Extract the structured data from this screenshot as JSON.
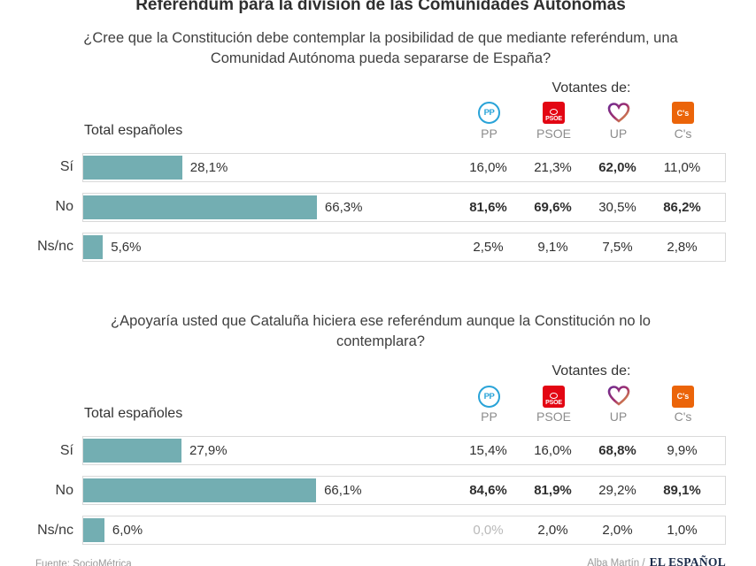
{
  "header": {
    "title": "Referéndum para la división de las Comunidades Autónomas"
  },
  "parties": [
    {
      "label": "PP",
      "short": "PP"
    },
    {
      "label": "PSOE",
      "short": "PSOE"
    },
    {
      "label": "UP",
      "short": "UP"
    },
    {
      "label": "C's",
      "short": "C's"
    }
  ],
  "chart_data": [
    {
      "type": "bar",
      "orientation": "horizontal",
      "question": "¿Cree que la Constitución debe contemplar la posibilidad de que mediante referéndum, una Comunidad Autónoma pueda separarse de España?",
      "votantes_label": "Votantes de:",
      "total_label": "Total españoles",
      "categories": [
        "Sí",
        "No",
        "Ns/nc"
      ],
      "xlim": [
        0,
        100
      ],
      "unit": "%",
      "total": {
        "values": [
          28.1,
          66.3,
          5.6
        ],
        "labels": [
          "28,1%",
          "66,3%",
          "5,6%"
        ]
      },
      "series": [
        {
          "name": "PP",
          "values": [
            16.0,
            81.6,
            2.5
          ],
          "labels": [
            "16,0%",
            "81,6%",
            "2,5%"
          ]
        },
        {
          "name": "PSOE",
          "values": [
            21.3,
            69.6,
            9.1
          ],
          "labels": [
            "21,3%",
            "69,6%",
            "9,1%"
          ]
        },
        {
          "name": "UP",
          "values": [
            62.0,
            30.5,
            7.5
          ],
          "labels": [
            "62,0%",
            "30,5%",
            "7,5%"
          ]
        },
        {
          "name": "C's",
          "values": [
            11.0,
            86.2,
            2.8
          ],
          "labels": [
            "11,0%",
            "86,2%",
            "2,8%"
          ]
        }
      ]
    },
    {
      "type": "bar",
      "orientation": "horizontal",
      "question": "¿Apoyaría usted que Cataluña hiciera ese referéndum aunque la Constitución no lo contemplara?",
      "votantes_label": "Votantes de:",
      "total_label": "Total españoles",
      "categories": [
        "Sí",
        "No",
        "Ns/nc"
      ],
      "xlim": [
        0,
        100
      ],
      "unit": "%",
      "total": {
        "values": [
          27.9,
          66.1,
          6.0
        ],
        "labels": [
          "27,9%",
          "66,1%",
          "6,0%"
        ]
      },
      "series": [
        {
          "name": "PP",
          "values": [
            15.4,
            84.6,
            0.0
          ],
          "labels": [
            "15,4%",
            "84,6%",
            "0,0%"
          ]
        },
        {
          "name": "PSOE",
          "values": [
            16.0,
            81.9,
            2.0
          ],
          "labels": [
            "16,0%",
            "81,9%",
            "2,0%"
          ]
        },
        {
          "name": "UP",
          "values": [
            68.8,
            29.2,
            2.0
          ],
          "labels": [
            "68,8%",
            "29,2%",
            "2,0%"
          ]
        },
        {
          "name": "C's",
          "values": [
            9.9,
            89.1,
            1.0
          ],
          "labels": [
            "9,9%",
            "89,1%",
            "1,0%"
          ]
        }
      ]
    }
  ],
  "footer": {
    "source_prefix": "Fuente:",
    "source": "SocioMétrica",
    "credit": "Alba Martín /",
    "brand": "EL ESPAÑOL"
  },
  "colors": {
    "bar": "#73aeb2",
    "pp": "#29a3d8",
    "psoe": "#e30613",
    "cs": "#eb6409",
    "up_purple": "#6f2c91",
    "up_orange": "#e8a33d",
    "brand": "#1b2b4a"
  }
}
